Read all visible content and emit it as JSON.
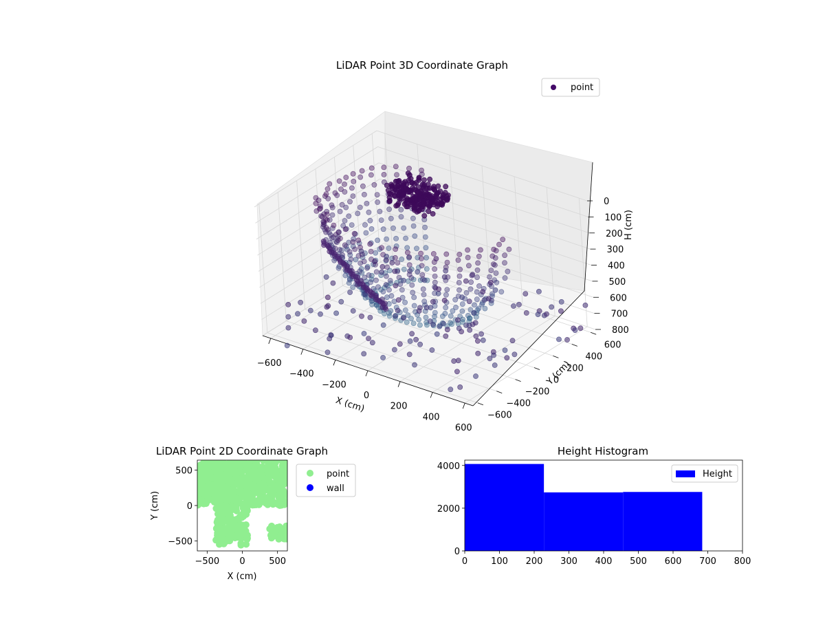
{
  "chart_data": [
    {
      "type": "scatter3d",
      "title": "LiDAR Point 3D Coordinate Graph",
      "xlabel": "X (cm)",
      "ylabel": "Y (cm)",
      "zlabel": "H (cm)",
      "xlim": [
        -650,
        650
      ],
      "ylim": [
        -650,
        650
      ],
      "zlim": [
        0,
        800
      ],
      "z_inverted": true,
      "xticks": [
        -600,
        -400,
        -200,
        0,
        200,
        400,
        600
      ],
      "yticks": [
        -600,
        -400,
        -200,
        0,
        200,
        400,
        600
      ],
      "zticks": [
        0,
        100,
        200,
        300,
        400,
        500,
        600,
        700,
        800
      ],
      "legend": {
        "placement": "top-right",
        "entries": [
          {
            "label": "point",
            "color": "#440a68"
          }
        ]
      },
      "colormap": "viridis (height)",
      "grid": true,
      "series": [
        {
          "name": "point",
          "description_of_shape": "dome ring",
          "point_color": "#4b2a7a"
        }
      ]
    },
    {
      "type": "scatter",
      "title": "LiDAR Point 2D Coordinate Graph",
      "xlabel": "X (cm)",
      "ylabel": "Y (cm)",
      "xlim": [
        -640,
        640
      ],
      "ylim": [
        -640,
        640
      ],
      "xticks": [
        -500,
        0,
        500
      ],
      "yticks": [
        -500,
        0,
        500
      ],
      "legend": {
        "placement": "outside-right",
        "entries": [
          {
            "label": "point",
            "color": "#90ee90"
          },
          {
            "label": "wall",
            "color": "#0000ff"
          }
        ]
      }
    },
    {
      "type": "bar",
      "title": "Height Histogram",
      "xlim": [
        0,
        800
      ],
      "ylim": [
        0,
        4250
      ],
      "xticks": [
        0,
        100,
        200,
        300,
        400,
        500,
        600,
        700,
        800
      ],
      "yticks": [
        0,
        2000,
        4000
      ],
      "bins": [
        {
          "start": 0,
          "end": 228,
          "count": 4070
        },
        {
          "start": 228,
          "end": 456,
          "count": 2740
        },
        {
          "start": 456,
          "end": 684,
          "count": 2760
        }
      ],
      "color": "#0000ff",
      "legend": {
        "placement": "top-right",
        "entries": [
          {
            "label": "Height",
            "color": "#0000ff"
          }
        ]
      }
    }
  ]
}
